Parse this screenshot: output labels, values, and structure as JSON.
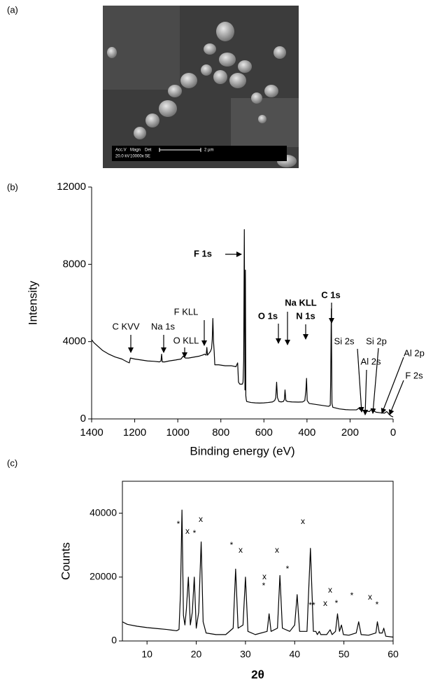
{
  "image": {
    "panel_label": "(a)",
    "info_labels": [
      "Acc.V",
      "Magn",
      "Det"
    ],
    "info_values": [
      "20.0 kV",
      "10000x",
      "SE"
    ],
    "scale_bar": "2 µm"
  },
  "chart_data": [
    {
      "type": "line",
      "panel_label": "(b)",
      "x_label": "Binding energy (eV)",
      "y_label": "Intensity",
      "color": "#000000",
      "frame": false,
      "xlim": [
        1400,
        0
      ],
      "xticks": [
        1400,
        1200,
        1000,
        800,
        600,
        400,
        200,
        0
      ],
      "ylim": [
        0,
        12000
      ],
      "yticks": [
        0,
        4000,
        8000,
        12000
      ],
      "x": [
        1400,
        1390,
        1370,
        1350,
        1320,
        1290,
        1260,
        1235,
        1225,
        1220,
        1200,
        1170,
        1140,
        1110,
        1085,
        1078,
        1075,
        1072,
        1060,
        1040,
        1010,
        985,
        975,
        965,
        950,
        925,
        900,
        885,
        875,
        868,
        865,
        862,
        855,
        848,
        843,
        840,
        837,
        834,
        831,
        828,
        822,
        810,
        780,
        750,
        730,
        722,
        718,
        712,
        706,
        700,
        697,
        694,
        691,
        688,
        686,
        684,
        682,
        680,
        660,
        640,
        620,
        600,
        580,
        560,
        550,
        545,
        541,
        537,
        530,
        520,
        510,
        505,
        502,
        498,
        490,
        470,
        440,
        420,
        410,
        405,
        402,
        399,
        390,
        360,
        330,
        300,
        292,
        290,
        287,
        284,
        280,
        250,
        220,
        200,
        170,
        160,
        150,
        130,
        110,
        100,
        80,
        60,
        40,
        30,
        25,
        20,
        10,
        0
      ],
      "values": [
        4100,
        3950,
        3750,
        3550,
        3350,
        3200,
        3100,
        2950,
        2900,
        3150,
        3100,
        3050,
        3000,
        2980,
        2950,
        3000,
        3350,
        2950,
        2950,
        3000,
        3050,
        3100,
        3250,
        3150,
        3150,
        3200,
        3250,
        3300,
        3350,
        3300,
        3700,
        3300,
        3400,
        3500,
        3650,
        4100,
        5200,
        4000,
        3500,
        2800,
        2800,
        2800,
        2750,
        2750,
        2700,
        2900,
        1900,
        1800,
        1800,
        1800,
        1900,
        3000,
        9800,
        1500,
        7700,
        1200,
        1000,
        900,
        850,
        830,
        820,
        830,
        850,
        880,
        950,
        1100,
        1900,
        1100,
        900,
        880,
        900,
        1000,
        1500,
        950,
        900,
        880,
        870,
        880,
        950,
        1500,
        2100,
        950,
        800,
        750,
        700,
        650,
        700,
        2000,
        5700,
        800,
        600,
        520,
        480,
        470,
        470,
        550,
        450,
        420,
        380,
        500,
        350,
        320,
        300,
        380,
        330,
        250,
        150,
        100
      ],
      "annotations": [
        "F 1s",
        "C KVV",
        "Na 1s",
        "F KLL",
        "O KLL",
        "O 1s",
        "Na KLL",
        "N 1s",
        "C 1s",
        "Si 2s",
        "Si 2p",
        "Al 2s",
        "Al 2p",
        "F 2s"
      ]
    },
    {
      "type": "line",
      "panel_label": "(c)",
      "x_label": "2θ",
      "y_label": "Counts",
      "color": "#000000",
      "frame": true,
      "xlim": [
        5,
        60
      ],
      "xticks": [
        10,
        20,
        30,
        40,
        50,
        60
      ],
      "ylim": [
        0,
        50000
      ],
      "yticks": [
        0,
        20000,
        40000
      ],
      "x": [
        5,
        6,
        8,
        10,
        12,
        14,
        15,
        16,
        16.5,
        16.8,
        17.1,
        17.4,
        17.7,
        18,
        18.4,
        18.8,
        19.2,
        19.6,
        20,
        20.5,
        21,
        21.4,
        22,
        24,
        26,
        27.5,
        28,
        28.5,
        29.5,
        30,
        30.5,
        32,
        34.4,
        34.8,
        35.2,
        36.5,
        37,
        37.5,
        39,
        40,
        40.5,
        41,
        42.5,
        43.2,
        43.8,
        44.3,
        44.6,
        45,
        45.3,
        46.5,
        47.2,
        47.6,
        48.3,
        48.7,
        49.1,
        49.5,
        49.9,
        51,
        52.5,
        53,
        53.5,
        55,
        56.5,
        56.8,
        57.2,
        57.8,
        58.1,
        58.5,
        60
      ],
      "values": [
        6000,
        5200,
        4600,
        4200,
        3900,
        3600,
        3400,
        3200,
        3600,
        15000,
        41000,
        8000,
        5000,
        10000,
        20000,
        5000,
        9000,
        20000,
        4000,
        9000,
        31000,
        6000,
        2500,
        2000,
        2000,
        4000,
        22500,
        4000,
        5000,
        20000,
        3000,
        2000,
        3000,
        8500,
        3000,
        4000,
        20500,
        4000,
        3000,
        5000,
        14500,
        3000,
        3000,
        29000,
        3000,
        3000,
        2000,
        3000,
        2000,
        2000,
        3500,
        2000,
        3000,
        8500,
        3000,
        5000,
        2000,
        1800,
        2500,
        6000,
        2000,
        1800,
        2500,
        6000,
        2500,
        2500,
        4000,
        1500,
        1200
      ],
      "annotations": [
        "*",
        "x",
        "*",
        "x",
        "*",
        "x",
        "x",
        "*",
        "x",
        "*",
        "x",
        "**",
        "x",
        "x",
        "*",
        "*",
        "x",
        "*"
      ]
    }
  ]
}
